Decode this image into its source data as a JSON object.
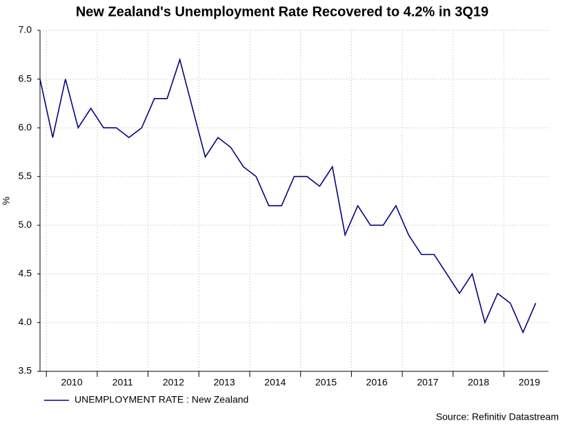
{
  "chart_data": {
    "type": "line",
    "title": "New Zealand's Unemployment Rate Recovered to 4.2% in 3Q19",
    "y_label": "%",
    "source": "Source: Refinitiv Datastream",
    "x": [
      2009.875,
      2010.125,
      2010.375,
      2010.625,
      2010.875,
      2011.125,
      2011.375,
      2011.625,
      2011.875,
      2012.125,
      2012.375,
      2012.625,
      2012.875,
      2013.125,
      2013.375,
      2013.625,
      2013.875,
      2014.125,
      2014.375,
      2014.625,
      2014.875,
      2015.125,
      2015.375,
      2015.625,
      2015.875,
      2016.125,
      2016.375,
      2016.625,
      2016.875,
      2017.125,
      2017.375,
      2017.625,
      2017.875,
      2018.125,
      2018.375,
      2018.625,
      2018.875,
      2019.125,
      2019.375,
      2019.625
    ],
    "series": [
      {
        "name": "UNEMPLOYMENT RATE : New Zealand",
        "color": "#000080",
        "values": [
          6.5,
          5.9,
          6.5,
          6.0,
          6.2,
          6.0,
          6.0,
          5.9,
          6.0,
          6.3,
          6.3,
          6.7,
          6.2,
          5.7,
          5.9,
          5.8,
          5.6,
          5.5,
          5.2,
          5.2,
          5.5,
          5.5,
          5.4,
          5.6,
          4.9,
          5.2,
          5.0,
          5.0,
          5.2,
          4.9,
          4.7,
          4.7,
          4.5,
          4.3,
          4.5,
          4.0,
          4.3,
          4.2,
          3.9,
          4.2
        ]
      }
    ],
    "xlim": [
      2009.875,
      2019.875
    ],
    "xticks": [
      {
        "value": 2010.5,
        "label": "2010"
      },
      {
        "value": 2011.5,
        "label": "2011"
      },
      {
        "value": 2012.5,
        "label": "2012"
      },
      {
        "value": 2013.5,
        "label": "2013"
      },
      {
        "value": 2014.5,
        "label": "2014"
      },
      {
        "value": 2015.5,
        "label": "2015"
      },
      {
        "value": 2016.5,
        "label": "2016"
      },
      {
        "value": 2017.5,
        "label": "2017"
      },
      {
        "value": 2018.5,
        "label": "2018"
      },
      {
        "value": 2019.5,
        "label": "2019"
      }
    ],
    "ylim": [
      3.5,
      7.0
    ],
    "yticks": [
      3.5,
      {
        "value": 4,
        "label": "4.0"
      },
      4.5,
      {
        "value": 5,
        "label": "5.0"
      },
      5.5,
      {
        "value": 6,
        "label": "6.0"
      },
      6.5,
      {
        "value": 7,
        "label": "7.0"
      }
    ],
    "grid": true
  }
}
